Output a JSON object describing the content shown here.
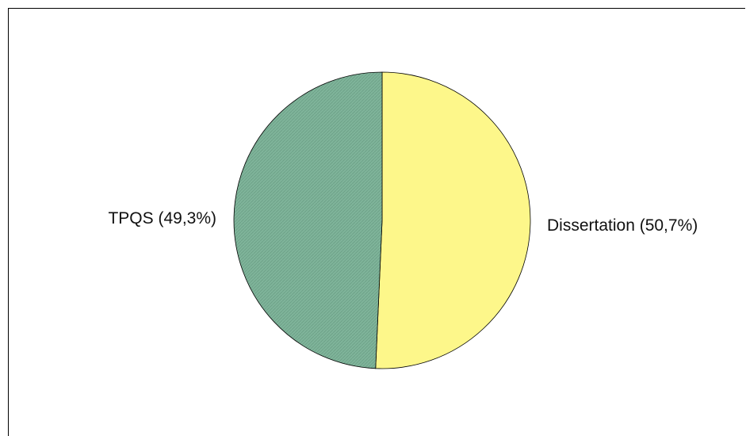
{
  "chart_data": {
    "type": "pie",
    "title": "",
    "categories": [
      "Dissertation",
      "TPQS"
    ],
    "values": [
      50.7,
      49.3
    ],
    "labels": [
      "Dissertation (50,7%)",
      "TPQS (49,3%)"
    ],
    "colors": [
      "#fdf78a",
      "#7fb49a"
    ],
    "legend": "none"
  }
}
